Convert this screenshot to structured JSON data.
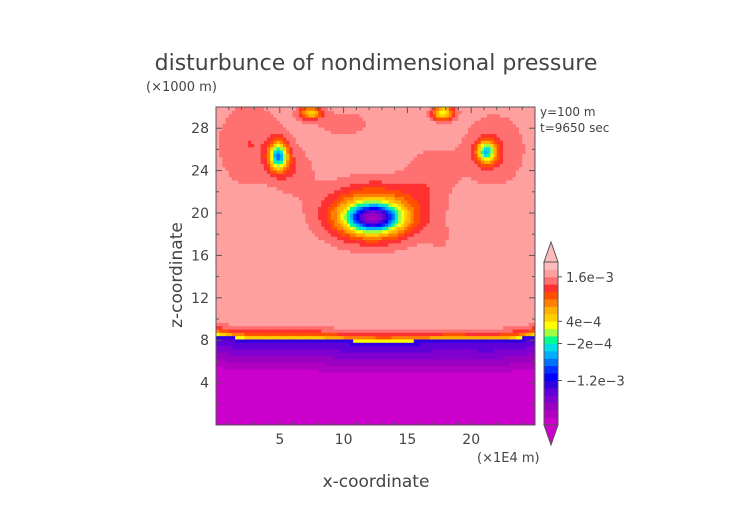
{
  "chart_data": {
    "type": "heatmap",
    "title": "disturbunce of nondimensional pressure",
    "xlabel": "x-coordinate",
    "ylabel": "z-coordinate",
    "x_unit": "(×1E4 m)",
    "y_unit": "(×1000 m)",
    "annotations": [
      "y=100 m",
      "t=9650 sec"
    ],
    "xlim": [
      0,
      25
    ],
    "ylim": [
      0,
      30
    ],
    "x_ticks": [
      "5",
      "10",
      "15",
      "20"
    ],
    "y_ticks": [
      "4",
      "8",
      "12",
      "16",
      "20",
      "24",
      "28"
    ],
    "x_tick_values": [
      5,
      10,
      15,
      20
    ],
    "y_tick_values": [
      4,
      8,
      12,
      16,
      20,
      24,
      28
    ],
    "colorbar": {
      "labels": [
        "1.6e−3",
        "4e−4",
        "−2e−4",
        "−1.2e−3"
      ],
      "label_positions": [
        0.0016,
        0.0004,
        -0.0002,
        -0.0012
      ],
      "levels": [
        -0.0024,
        -0.0022,
        -0.002,
        -0.0018,
        -0.0016,
        -0.0014,
        -0.0012,
        -0.001,
        -0.0008,
        -0.0006,
        -0.0004,
        -0.0002,
        0,
        0.0002,
        0.0004,
        0.0006,
        0.0008,
        0.001,
        0.0012,
        0.0014,
        0.0016,
        0.0018
      ],
      "colors": [
        "#cc00cc",
        "#b000c0",
        "#9a00c0",
        "#8000d0",
        "#6000d8",
        "#3000e0",
        "#0000ff",
        "#0030ff",
        "#0070ff",
        "#00b0ff",
        "#00e0e0",
        "#00ff90",
        "#a0ff40",
        "#ffff00",
        "#ffd000",
        "#ffb000",
        "#ff8000",
        "#ff5000",
        "#ff3030",
        "#ff7070",
        "#ffa0a0",
        "#ffbcbc"
      ]
    }
  }
}
